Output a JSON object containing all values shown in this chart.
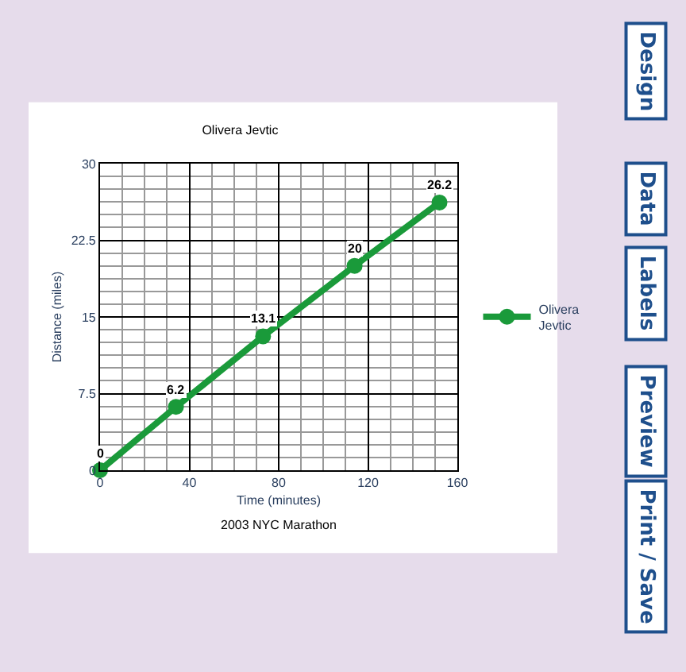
{
  "chart_data": {
    "type": "line",
    "title": "Olivera Jevtic",
    "xlabel": "Time (minutes)",
    "ylabel": "Distance (miles)",
    "x": [
      0,
      34,
      73,
      114,
      152
    ],
    "series": [
      {
        "name": "Olivera Jevtic",
        "color": "#1a9a3a",
        "values": [
          0,
          6.2,
          13.1,
          20,
          26.2
        ]
      }
    ],
    "xlim": [
      0,
      160
    ],
    "xticks": [
      0,
      40,
      80,
      120,
      160
    ],
    "ylim": [
      0,
      30
    ],
    "yticks": [
      0,
      7.5,
      15,
      22.5,
      30
    ],
    "grid": true,
    "legend": "right",
    "marker": "circle",
    "line_style": "solid",
    "data_labels": true,
    "annotations": [
      "2003 NYC Marathon",
      "Design",
      "Data",
      "Labels",
      "Preview",
      "Print / Save"
    ]
  }
}
